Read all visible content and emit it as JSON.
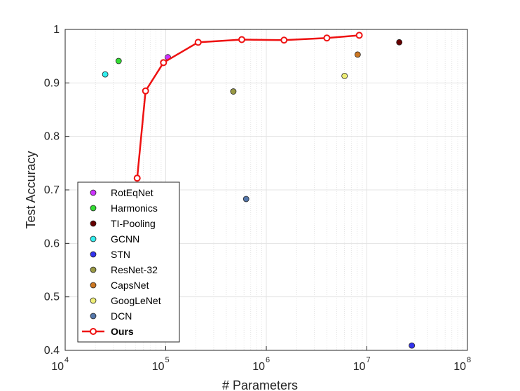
{
  "chart_data": {
    "type": "scatter",
    "title": "",
    "xlabel": "# Parameters",
    "ylabel": "Test Accuracy",
    "xscale": "log",
    "xlim": [
      10000,
      100000000
    ],
    "ylim": [
      0.4,
      1.0
    ],
    "grid": true,
    "x_ticks": [
      {
        "base": "10",
        "exp": "4"
      },
      {
        "base": "10",
        "exp": "5"
      },
      {
        "base": "10",
        "exp": "6"
      },
      {
        "base": "10",
        "exp": "7"
      },
      {
        "base": "10",
        "exp": "8"
      }
    ],
    "y_ticks": [
      "0.4",
      "0.5",
      "0.6",
      "0.7",
      "0.8",
      "0.9",
      "1"
    ],
    "legend_position": "lower-left",
    "series": [
      {
        "name": "RotEqNet",
        "kind": "marker",
        "color": "#cc33ff",
        "points": [
          {
            "x": 105000,
            "y": 0.948
          }
        ]
      },
      {
        "name": "Harmonics",
        "kind": "marker",
        "color": "#33dd33",
        "points": [
          {
            "x": 34000,
            "y": 0.941
          }
        ]
      },
      {
        "name": "TI-Pooling",
        "kind": "marker",
        "color": "#660000",
        "points": [
          {
            "x": 21000000,
            "y": 0.976
          }
        ]
      },
      {
        "name": "GCNN",
        "kind": "marker",
        "color": "#33eeee",
        "points": [
          {
            "x": 25000,
            "y": 0.916
          }
        ]
      },
      {
        "name": "STN",
        "kind": "marker",
        "color": "#3333ee",
        "points": [
          {
            "x": 28000000,
            "y": 0.409
          }
        ]
      },
      {
        "name": "ResNet-32",
        "kind": "marker",
        "color": "#999944",
        "points": [
          {
            "x": 470000,
            "y": 0.884
          }
        ]
      },
      {
        "name": "CapsNet",
        "kind": "marker",
        "color": "#cc7722",
        "points": [
          {
            "x": 8100000,
            "y": 0.953
          }
        ]
      },
      {
        "name": "GoogLeNet",
        "kind": "marker",
        "color": "#eeee77",
        "points": [
          {
            "x": 6000000,
            "y": 0.913
          }
        ]
      },
      {
        "name": "DCN",
        "kind": "marker",
        "color": "#5577aa",
        "points": [
          {
            "x": 630000,
            "y": 0.683
          }
        ]
      },
      {
        "name": "Ours",
        "kind": "line",
        "bold": true,
        "color": "#ee1111",
        "points": [
          {
            "x": 52000,
            "y": 0.722
          },
          {
            "x": 63000,
            "y": 0.885
          },
          {
            "x": 95000,
            "y": 0.938
          },
          {
            "x": 210000,
            "y": 0.976
          },
          {
            "x": 570000,
            "y": 0.981
          },
          {
            "x": 1500000,
            "y": 0.98
          },
          {
            "x": 4000000,
            "y": 0.984
          },
          {
            "x": 8400000,
            "y": 0.989
          }
        ]
      }
    ]
  }
}
